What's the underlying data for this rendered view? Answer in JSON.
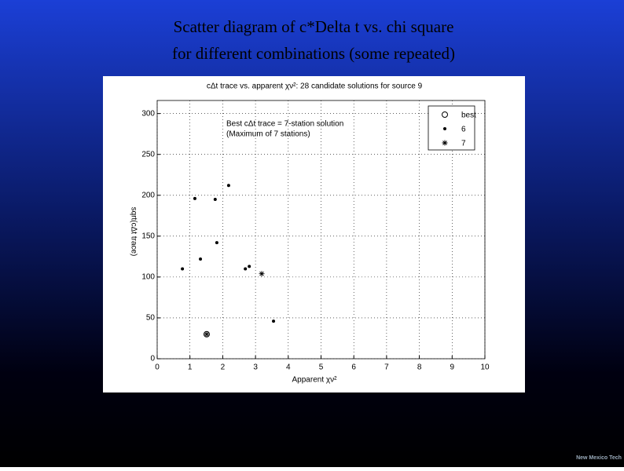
{
  "slide": {
    "title_lines": [
      "Scatter diagram of c*Delta t vs. chi square",
      "for different combinations (some repeated)"
    ],
    "logo": "New Mexico Tech"
  },
  "chart_data": {
    "type": "scatter",
    "title": "cΔt trace vs. apparent χν²: 28 candidate solutions for source 9",
    "x_label": "Apparent χν²",
    "y_label": "sqrt(cΔt trace)",
    "annotations": [
      "Best cΔt trace = 7-station solution",
      "(Maximum of 7 stations)"
    ],
    "xlim": [
      0,
      10
    ],
    "xticks": [
      0,
      1,
      2,
      3,
      4,
      5,
      6,
      7,
      8,
      9,
      10
    ],
    "ylim": [
      0,
      316
    ],
    "yticks": [
      0,
      50,
      100,
      150,
      200,
      250,
      300
    ],
    "grid": true,
    "legend": "upper right",
    "series": [
      {
        "name": "best",
        "color": "#000000",
        "marker": "circle",
        "x": [
          1.51
        ],
        "values": [
          30
        ]
      },
      {
        "name": "6",
        "color": "#000000",
        "marker": "dot",
        "x": [
          0.77,
          1.15,
          1.32,
          1.77,
          1.82,
          2.18,
          2.69,
          2.81,
          3.55
        ],
        "values": [
          110,
          196,
          122,
          195,
          142,
          212,
          110,
          113,
          46
        ]
      },
      {
        "name": "7",
        "color": "#000000",
        "marker": "asterisk",
        "x": [
          3.19,
          1.51
        ],
        "values": [
          104,
          30
        ]
      }
    ]
  }
}
